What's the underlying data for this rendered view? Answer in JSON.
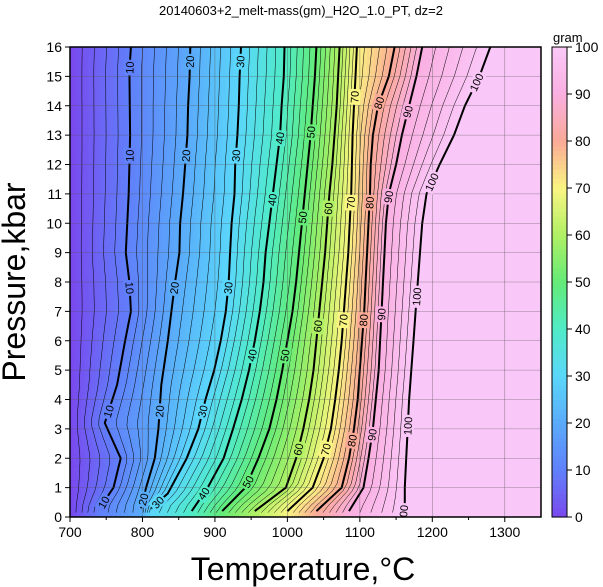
{
  "chart_data": {
    "type": "heatmap",
    "title": "20140603+2_melt-mass(gm)_H2O_1.0_PT, dz=2",
    "xlabel": "Temperature,°C",
    "ylabel": "Pressure,kbar",
    "xlim": [
      700,
      1350
    ],
    "ylim": [
      0,
      16
    ],
    "xticks": [
      700,
      800,
      900,
      1000,
      1100,
      1200,
      1300
    ],
    "yticks": [
      0,
      1,
      2,
      3,
      4,
      5,
      6,
      7,
      8,
      9,
      10,
      11,
      12,
      13,
      14,
      15,
      16
    ],
    "grid": true,
    "colorbar": {
      "label": "gram",
      "min": 0,
      "max": 100,
      "ticks": [
        0,
        10,
        20,
        30,
        40,
        50,
        60,
        70,
        80,
        90,
        100
      ]
    },
    "contour_interval": 2,
    "labeled_contour_interval": 10,
    "contours": [
      {
        "level": 10,
        "points": [
          [
            741,
            0.3
          ],
          [
            760,
            1
          ],
          [
            770,
            2
          ],
          [
            748,
            3.2
          ],
          [
            765,
            4.5
          ],
          [
            776,
            6
          ],
          [
            784,
            7
          ],
          [
            782,
            8
          ],
          [
            777,
            9
          ],
          [
            781,
            11
          ],
          [
            783,
            13
          ],
          [
            782,
            15.2
          ],
          [
            784,
            16
          ]
        ]
      },
      {
        "level": 20,
        "points": [
          [
            798,
            0.3
          ],
          [
            805,
            1
          ],
          [
            817,
            2
          ],
          [
            822,
            3
          ],
          [
            826,
            4.5
          ],
          [
            835,
            6
          ],
          [
            840,
            7
          ],
          [
            845,
            8
          ],
          [
            851,
            9
          ],
          [
            852,
            10
          ],
          [
            856,
            11
          ],
          [
            859,
            12
          ],
          [
            862,
            13
          ],
          [
            863,
            14
          ],
          [
            865,
            15
          ],
          [
            866,
            16
          ]
        ]
      },
      {
        "level": 30,
        "points": [
          [
            812,
            0.3
          ],
          [
            835,
            0.8
          ],
          [
            861,
            2
          ],
          [
            877,
            3
          ],
          [
            887,
            4
          ],
          [
            899,
            5
          ],
          [
            908,
            6
          ],
          [
            915,
            7
          ],
          [
            919,
            8
          ],
          [
            921,
            9
          ],
          [
            923,
            10
          ],
          [
            927,
            11
          ],
          [
            928,
            12
          ],
          [
            931,
            13
          ],
          [
            933,
            14
          ],
          [
            934,
            15
          ],
          [
            936,
            16
          ]
        ]
      },
      {
        "level": 40,
        "points": [
          [
            868,
            0.2
          ],
          [
            890,
            1
          ],
          [
            912,
            2
          ],
          [
            925,
            3
          ],
          [
            937,
            4
          ],
          [
            947,
            5
          ],
          [
            955,
            6
          ],
          [
            962,
            7
          ],
          [
            967,
            8
          ],
          [
            970,
            9
          ],
          [
            975,
            10
          ],
          [
            980,
            11
          ],
          [
            985,
            12
          ],
          [
            990,
            13
          ],
          [
            992,
            14
          ],
          [
            995,
            15
          ],
          [
            996,
            16
          ]
        ]
      },
      {
        "level": 50,
        "points": [
          [
            910,
            0.2
          ],
          [
            942,
            1
          ],
          [
            960,
            2
          ],
          [
            975,
            3
          ],
          [
            985,
            4
          ],
          [
            993,
            5
          ],
          [
            1000,
            6
          ],
          [
            1007,
            7
          ],
          [
            1012,
            8
          ],
          [
            1016,
            9
          ],
          [
            1020,
            10
          ],
          [
            1024,
            11
          ],
          [
            1028,
            12
          ],
          [
            1032,
            13
          ],
          [
            1035,
            14
          ],
          [
            1038,
            15
          ],
          [
            1040,
            16
          ]
        ]
      },
      {
        "level": 60,
        "points": [
          [
            955,
            0.2
          ],
          [
            998,
            1
          ],
          [
            1012,
            2
          ],
          [
            1022,
            3
          ],
          [
            1030,
            4
          ],
          [
            1036,
            5
          ],
          [
            1040,
            6
          ],
          [
            1044,
            7
          ],
          [
            1048,
            8
          ],
          [
            1052,
            9
          ],
          [
            1055,
            10
          ],
          [
            1058,
            11
          ],
          [
            1062,
            12
          ],
          [
            1065,
            13
          ],
          [
            1068,
            14
          ],
          [
            1070,
            15
          ],
          [
            1072,
            16
          ]
        ]
      },
      {
        "level": 70,
        "points": [
          [
            1000,
            0.2
          ],
          [
            1035,
            1
          ],
          [
            1050,
            2
          ],
          [
            1060,
            3
          ],
          [
            1066,
            4
          ],
          [
            1071,
            5
          ],
          [
            1075,
            6
          ],
          [
            1078,
            7
          ],
          [
            1081,
            8
          ],
          [
            1084,
            9
          ],
          [
            1086,
            10
          ],
          [
            1088,
            11
          ],
          [
            1089,
            12
          ],
          [
            1090,
            13
          ],
          [
            1092,
            14
          ],
          [
            1094,
            15
          ],
          [
            1096,
            16
          ]
        ]
      },
      {
        "level": 80,
        "points": [
          [
            1040,
            0.2
          ],
          [
            1075,
            1
          ],
          [
            1085,
            2
          ],
          [
            1092,
            3
          ],
          [
            1097,
            4
          ],
          [
            1100,
            5
          ],
          [
            1103,
            6
          ],
          [
            1106,
            7
          ],
          [
            1108,
            8
          ],
          [
            1110,
            9
          ],
          [
            1112,
            10
          ],
          [
            1114,
            11
          ],
          [
            1115,
            12
          ],
          [
            1118,
            13
          ],
          [
            1125,
            14
          ],
          [
            1140,
            15
          ],
          [
            1148,
            16
          ]
        ]
      },
      {
        "level": 90,
        "points": [
          [
            1085,
            0.2
          ],
          [
            1105,
            1
          ],
          [
            1112,
            2
          ],
          [
            1118,
            3
          ],
          [
            1122,
            4
          ],
          [
            1126,
            5
          ],
          [
            1128,
            6
          ],
          [
            1130,
            7
          ],
          [
            1132,
            8
          ],
          [
            1134,
            9
          ],
          [
            1136,
            10
          ],
          [
            1140,
            11
          ],
          [
            1150,
            12
          ],
          [
            1158,
            13
          ],
          [
            1168,
            14
          ],
          [
            1178,
            15
          ],
          [
            1186,
            16
          ]
        ]
      },
      {
        "level": 100,
        "points": [
          [
            1160,
            0.1
          ],
          [
            1162,
            0.5
          ],
          [
            1162,
            1
          ],
          [
            1164,
            2
          ],
          [
            1166,
            3
          ],
          [
            1168,
            4
          ],
          [
            1171,
            5
          ],
          [
            1174,
            6
          ],
          [
            1177,
            7
          ],
          [
            1180,
            8
          ],
          [
            1183,
            9
          ],
          [
            1186,
            10
          ],
          [
            1192,
            11
          ],
          [
            1210,
            12
          ],
          [
            1230,
            13
          ],
          [
            1245,
            14
          ],
          [
            1265,
            15
          ],
          [
            1280,
            16
          ]
        ]
      }
    ]
  }
}
